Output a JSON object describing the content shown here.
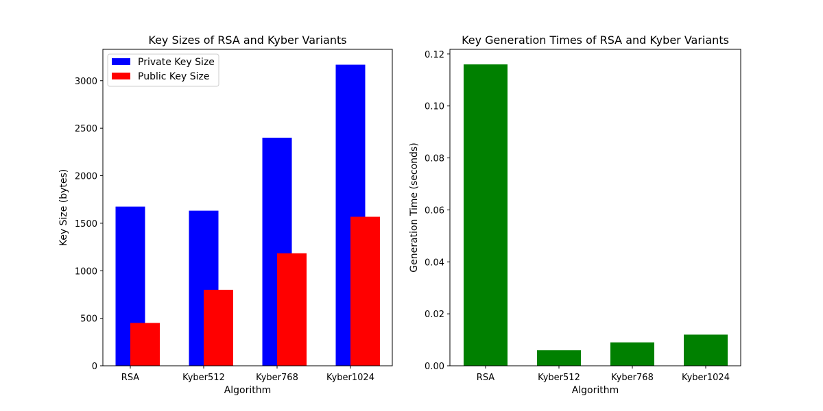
{
  "chart_data": [
    {
      "type": "bar",
      "title": "Key Sizes of RSA and Kyber Variants",
      "xlabel": "Algorithm",
      "ylabel": "Key Size (bytes)",
      "categories": [
        "RSA",
        "Kyber512",
        "Kyber768",
        "Kyber1024"
      ],
      "ylim": [
        0,
        3330
      ],
      "yticks": [
        0,
        500,
        1000,
        1500,
        2000,
        2500,
        3000
      ],
      "ytick_labels": [
        "0",
        "500",
        "1000",
        "1500",
        "2000",
        "2500",
        "3000"
      ],
      "grid": false,
      "legend_position": "top-left",
      "series": [
        {
          "name": "Private Key Size",
          "color": "#0000ff",
          "values": [
            1675,
            1632,
            2400,
            3168
          ]
        },
        {
          "name": "Public Key Size",
          "color": "#ff0000",
          "values": [
            451,
            800,
            1184,
            1568
          ]
        }
      ]
    },
    {
      "type": "bar",
      "title": "Key Generation Times of RSA and Kyber Variants",
      "xlabel": "Algorithm",
      "ylabel": "Generation Time (seconds)",
      "categories": [
        "RSA",
        "Kyber512",
        "Kyber768",
        "Kyber1024"
      ],
      "ylim": [
        0,
        0.1218
      ],
      "yticks": [
        0,
        0.02,
        0.04,
        0.06,
        0.08,
        0.1,
        0.12
      ],
      "ytick_labels": [
        "0.00",
        "0.02",
        "0.04",
        "0.06",
        "0.08",
        "0.10",
        "0.12"
      ],
      "grid": false,
      "series": [
        {
          "color": "#008000",
          "values": [
            0.116,
            0.006,
            0.009,
            0.012
          ]
        }
      ]
    }
  ]
}
